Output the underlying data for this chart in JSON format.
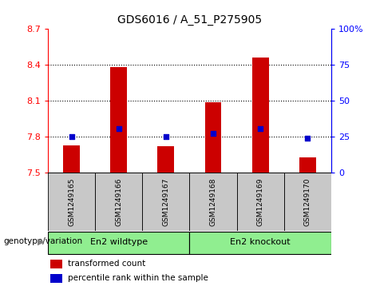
{
  "title": "GDS6016 / A_51_P275905",
  "samples": [
    "GSM1249165",
    "GSM1249166",
    "GSM1249167",
    "GSM1249168",
    "GSM1249169",
    "GSM1249170"
  ],
  "bar_values": [
    7.73,
    8.38,
    7.72,
    8.09,
    8.46,
    7.63
  ],
  "bar_base": 7.5,
  "percentile_values": [
    7.8,
    7.87,
    7.8,
    7.83,
    7.87,
    7.79
  ],
  "ylim": [
    7.5,
    8.7
  ],
  "yticks_left": [
    7.5,
    7.8,
    8.1,
    8.4,
    8.7
  ],
  "yticks_right": [
    0,
    25,
    50,
    75,
    100
  ],
  "bar_color": "#CC0000",
  "dot_color": "#0000CC",
  "label_area_color": "#C8C8C8",
  "group_color": "#90EE90",
  "genotype_label": "genotype/variation",
  "groups": [
    {
      "label": "En2 wildtype",
      "start": 0,
      "end": 2
    },
    {
      "label": "En2 knockout",
      "start": 3,
      "end": 5
    }
  ],
  "legend_bar_label": "transformed count",
  "legend_dot_label": "percentile rank within the sample",
  "bar_width": 0.35
}
